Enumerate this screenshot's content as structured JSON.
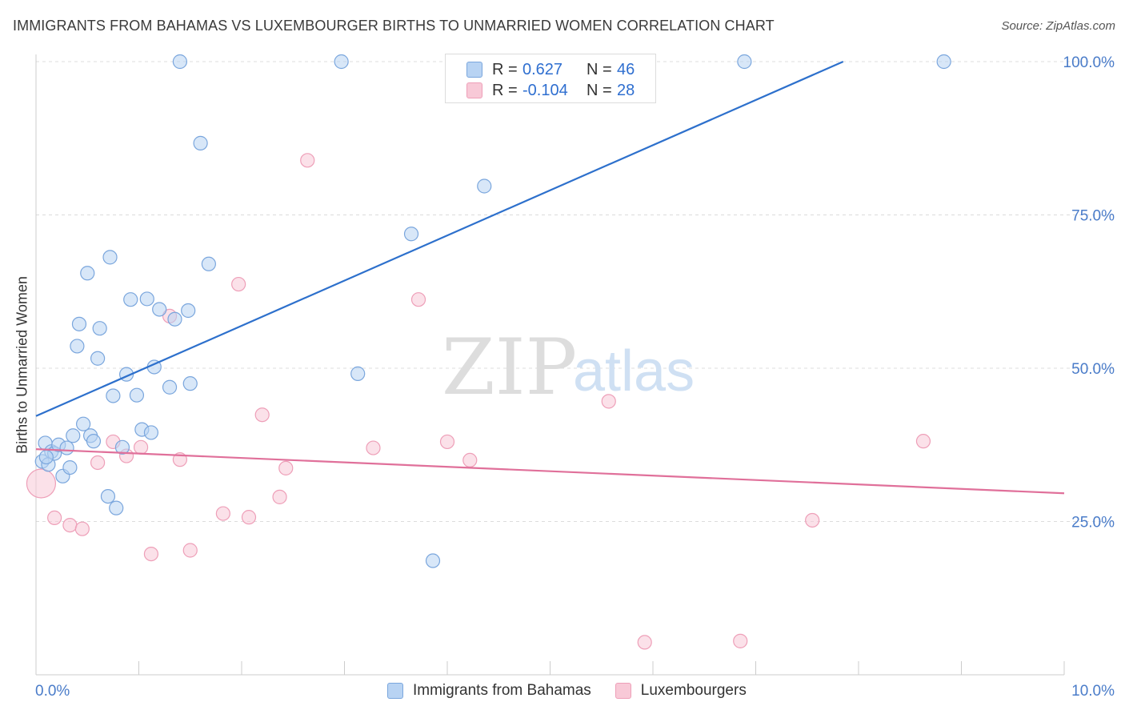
{
  "title": "IMMIGRANTS FROM BAHAMAS VS LUXEMBOURGER BIRTHS TO UNMARRIED WOMEN CORRELATION CHART",
  "source": "Source: ZipAtlas.com",
  "watermark": {
    "zip": "ZIP",
    "atlas": "atlas"
  },
  "legend_top": [
    {
      "r_label": "R =",
      "r_value": "0.627",
      "n_label": "N =",
      "n_value": "46"
    },
    {
      "r_label": "R =",
      "r_value": "-0.104",
      "n_label": "N =",
      "n_value": "28"
    }
  ],
  "legend_bottom": [
    "Immigrants from Bahamas",
    "Luxembourgers"
  ],
  "chart_data": {
    "type": "scatter",
    "title": "IMMIGRANTS FROM BAHAMAS VS LUXEMBOURGER BIRTHS TO UNMARRIED WOMEN CORRELATION CHART",
    "xlabel": "",
    "ylabel": "Births to Unmarried Women",
    "xlim": [
      0,
      10
    ],
    "ylim": [
      0,
      102.5
    ],
    "x_tick_labels": [
      "0.0%",
      "10.0%"
    ],
    "y_ticks": [
      25,
      50,
      75,
      100
    ],
    "y_tick_labels": [
      "25.0%",
      "50.0%",
      "75.0%",
      "100.0%"
    ],
    "colors": {
      "blue_fill": "#b8d3f3",
      "blue_stroke": "#7aa6dd",
      "blue_line": "#2d70cc",
      "pink_fill": "#f8c9d7",
      "pink_stroke": "#ee9fb8",
      "pink_line": "#e0709a",
      "tick_text": "#4a7cc9",
      "grid": "#dcdcdc"
    },
    "series": [
      {
        "name": "Immigrants from Bahamas",
        "color": "#b8d3f3",
        "points": [
          [
            0.06,
            34.8
          ],
          [
            0.09,
            37.8
          ],
          [
            0.12,
            34.3
          ],
          [
            0.15,
            36.4
          ],
          [
            0.18,
            36.1
          ],
          [
            0.22,
            37.5
          ],
          [
            0.26,
            32.4
          ],
          [
            0.3,
            37.0
          ],
          [
            0.33,
            33.8
          ],
          [
            0.36,
            39.0
          ],
          [
            0.4,
            53.6
          ],
          [
            0.42,
            57.2
          ],
          [
            0.46,
            40.9
          ],
          [
            0.5,
            65.5
          ],
          [
            0.53,
            39.0
          ],
          [
            0.56,
            38.1
          ],
          [
            0.6,
            51.6
          ],
          [
            0.62,
            56.5
          ],
          [
            0.7,
            29.1
          ],
          [
            0.72,
            68.1
          ],
          [
            0.75,
            45.5
          ],
          [
            0.78,
            27.2
          ],
          [
            0.84,
            37.1
          ],
          [
            0.88,
            49.0
          ],
          [
            0.92,
            61.2
          ],
          [
            0.98,
            45.6
          ],
          [
            1.03,
            40.0
          ],
          [
            1.08,
            61.3
          ],
          [
            1.12,
            39.5
          ],
          [
            1.15,
            50.2
          ],
          [
            1.2,
            59.6
          ],
          [
            1.3,
            46.9
          ],
          [
            1.35,
            58.0
          ],
          [
            1.4,
            100.0
          ],
          [
            1.48,
            59.4
          ],
          [
            1.5,
            47.5
          ],
          [
            1.6,
            86.7
          ],
          [
            1.68,
            67.0
          ],
          [
            2.97,
            100.0
          ],
          [
            3.13,
            49.1
          ],
          [
            3.65,
            71.9
          ],
          [
            3.86,
            18.6
          ],
          [
            4.36,
            79.7
          ],
          [
            6.89,
            100.0
          ],
          [
            8.83,
            100.0
          ],
          [
            0.1,
            35.5
          ]
        ]
      },
      {
        "name": "Luxembourgers",
        "color": "#f8c9d7",
        "points": [
          [
            0.05,
            31.2
          ],
          [
            0.18,
            25.6
          ],
          [
            0.33,
            24.4
          ],
          [
            0.45,
            23.8
          ],
          [
            0.6,
            34.6
          ],
          [
            0.75,
            38.0
          ],
          [
            0.88,
            35.7
          ],
          [
            1.02,
            37.1
          ],
          [
            1.12,
            19.7
          ],
          [
            1.3,
            58.5
          ],
          [
            1.4,
            35.1
          ],
          [
            1.5,
            20.3
          ],
          [
            1.82,
            26.3
          ],
          [
            1.97,
            63.7
          ],
          [
            2.07,
            25.7
          ],
          [
            2.2,
            42.4
          ],
          [
            2.37,
            29.0
          ],
          [
            2.43,
            33.7
          ],
          [
            2.64,
            83.9
          ],
          [
            3.28,
            37.0
          ],
          [
            3.72,
            61.2
          ],
          [
            4.0,
            38.0
          ],
          [
            4.22,
            35.0
          ],
          [
            5.57,
            44.6
          ],
          [
            5.92,
            5.3
          ],
          [
            6.85,
            5.5
          ],
          [
            7.55,
            25.2
          ],
          [
            8.63,
            38.1
          ]
        ]
      }
    ],
    "trendlines": [
      {
        "series": "Immigrants from Bahamas",
        "from": [
          0,
          42.2
        ],
        "to": [
          7.85,
          100.0
        ]
      },
      {
        "series": "Luxembourgers",
        "from": [
          0,
          36.8
        ],
        "to": [
          10,
          29.6
        ]
      }
    ]
  }
}
